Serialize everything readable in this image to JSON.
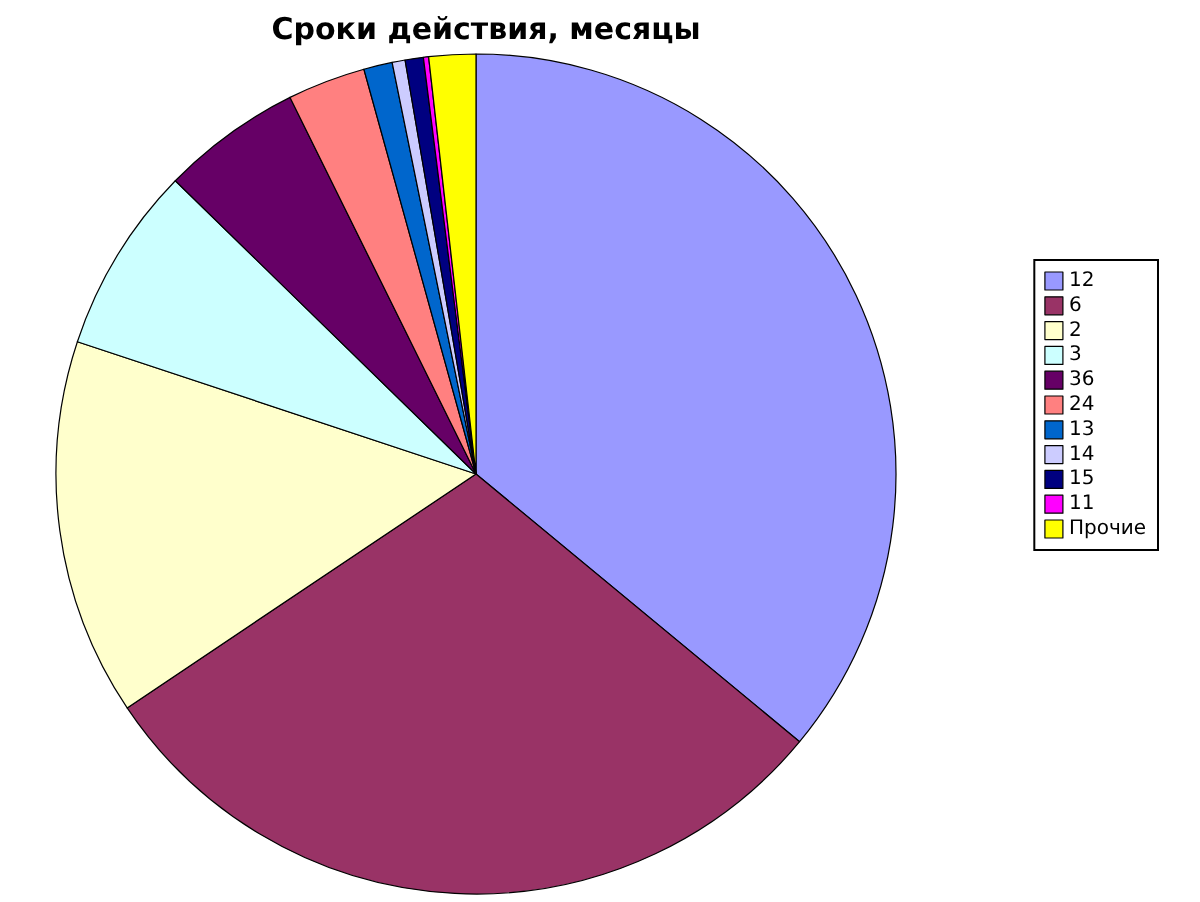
{
  "chart_data": {
    "type": "pie",
    "title": "Сроки действия, месяцы",
    "categories": [
      "12",
      "6",
      "2",
      "3",
      "36",
      "24",
      "13",
      "14",
      "15",
      "11",
      "Прочие"
    ],
    "values": [
      36.0,
      29.6,
      14.5,
      7.2,
      5.4,
      3.0,
      1.1,
      0.5,
      0.7,
      0.2,
      1.8
    ],
    "colors": [
      "#9999ff",
      "#993366",
      "#ffffcc",
      "#ccffff",
      "#660066",
      "#ff8080",
      "#0066cc",
      "#ccccff",
      "#000080",
      "#ff00ff",
      "#ffff00"
    ],
    "legend": "right"
  }
}
